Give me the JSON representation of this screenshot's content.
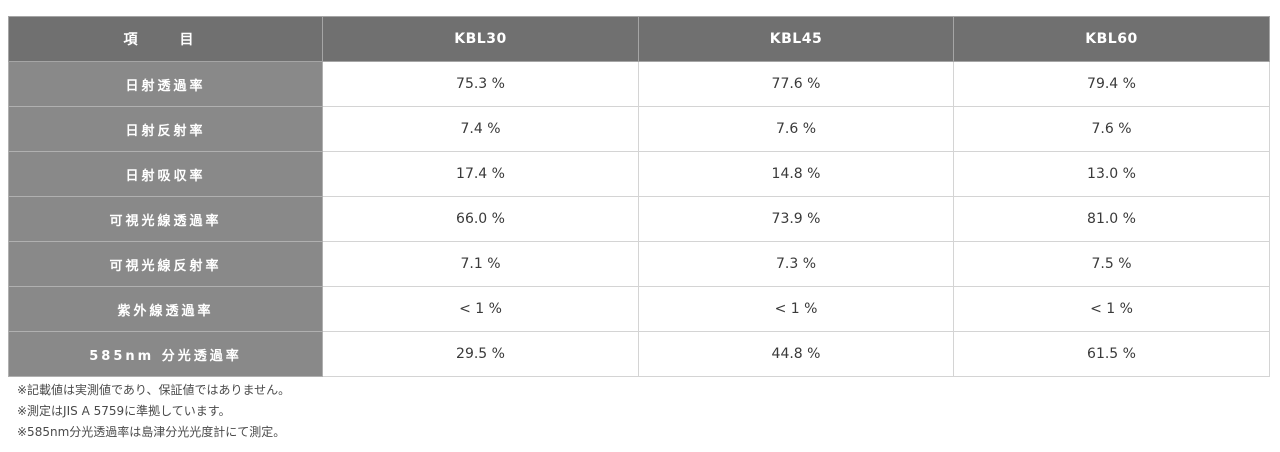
{
  "table": {
    "headers": [
      "項　目",
      "KBL30",
      "KBL45",
      "KBL60"
    ],
    "rows": [
      {
        "label": "日射透過率",
        "values": [
          "75.3 %",
          "77.6 %",
          "79.4 %"
        ]
      },
      {
        "label": "日射反射率",
        "values": [
          "7.4 %",
          "7.6 %",
          "7.6 %"
        ]
      },
      {
        "label": "日射吸収率",
        "values": [
          "17.4 %",
          "14.8 %",
          "13.0 %"
        ]
      },
      {
        "label": "可視光線透過率",
        "values": [
          "66.0 %",
          "73.9 %",
          "81.0 %"
        ]
      },
      {
        "label": "可視光線反射率",
        "values": [
          "7.1 %",
          "7.3 %",
          "7.5 %"
        ]
      },
      {
        "label": "紫外線透過率",
        "values": [
          "< 1 %",
          "< 1 %",
          "< 1 %"
        ]
      },
      {
        "label": "585nm 分光透過率",
        "values": [
          "29.5 %",
          "44.8 %",
          "61.5 %"
        ]
      }
    ]
  },
  "notes": [
    "※記載値は実測値であり、保証値ではありません。",
    "※測定はJIS A 5759に準拠しています。",
    "※585nm分光透過率は島津分光光度計にて測定。"
  ],
  "colors": {
    "header_bg": "#707070",
    "row_label_bg": "#898989",
    "border": "#d4d4d4"
  }
}
